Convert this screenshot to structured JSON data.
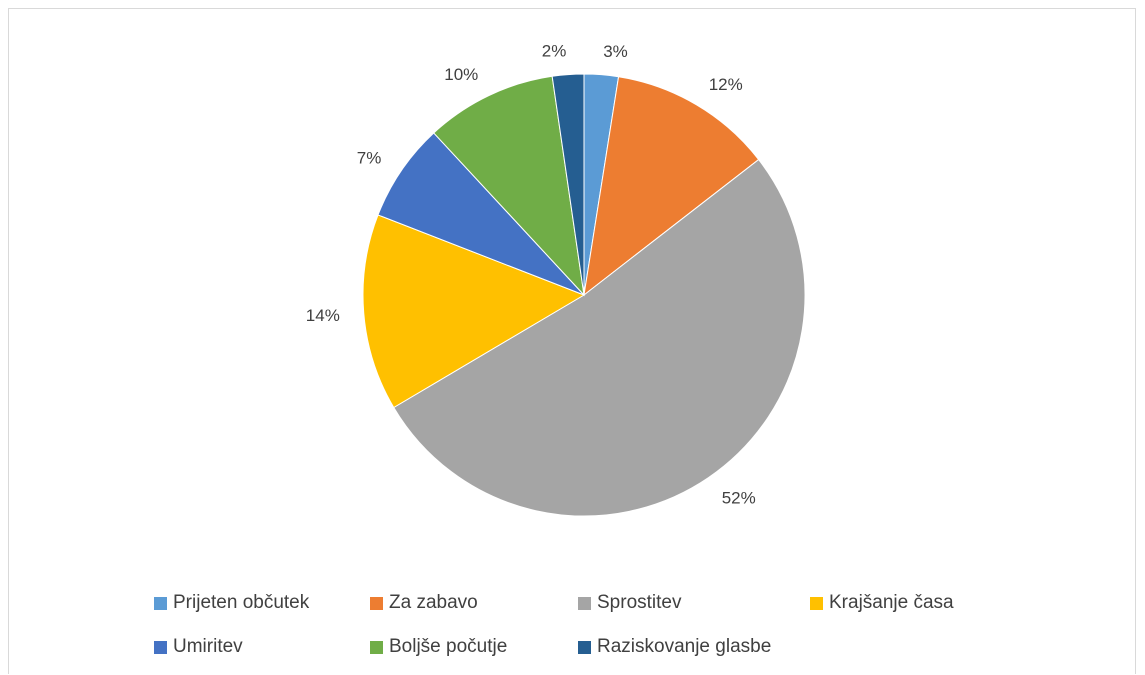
{
  "chart_data": {
    "type": "pie",
    "slices": [
      {
        "label": "Prijeten občutek",
        "value": 2.5,
        "display": "3%",
        "color": "#5B9BD5"
      },
      {
        "label": "Za zabavo",
        "value": 12,
        "display": "12%",
        "color": "#ED7D31"
      },
      {
        "label": "Sprostitev",
        "value": 52,
        "display": "52%",
        "color": "#A5A5A5"
      },
      {
        "label": "Krajšanje časa",
        "value": 14.4,
        "display": "14%",
        "color": "#FFC000"
      },
      {
        "label": "Umiritev",
        "value": 7.2,
        "display": "7%",
        "color": "#4472C4"
      },
      {
        "label": "Boljše počutje",
        "value": 9.6,
        "display": "10%",
        "color": "#70AD47"
      },
      {
        "label": "Raziskovanje glasbe",
        "value": 2.3,
        "display": "2%",
        "color": "#255E91"
      }
    ],
    "legend_position": "bottom"
  }
}
